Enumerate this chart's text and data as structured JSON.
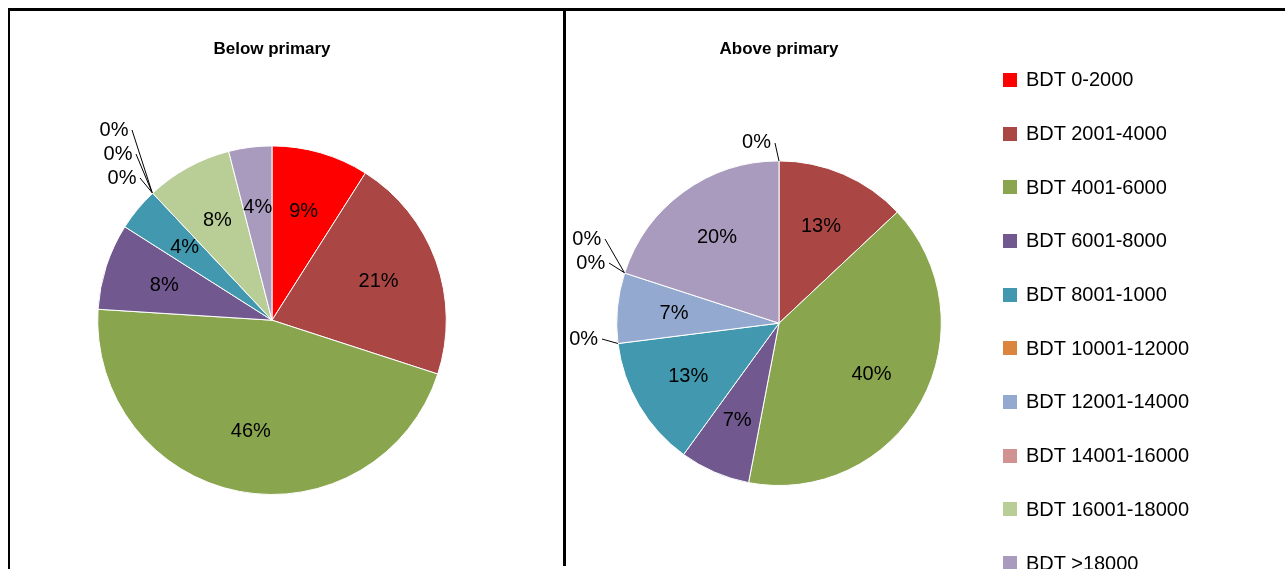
{
  "chart_data": {
    "type": "pie",
    "legend": "right",
    "categories": [
      "BDT 0-2000",
      "BDT 2001-4000",
      "BDT 4001-6000",
      "BDT 6001-8000",
      "BDT 8001-1000",
      "BDT 10001-12000",
      "BDT 12001-14000",
      "BDT 14001-16000",
      "BDT 16001-18000",
      "BDT >18000"
    ],
    "colors": [
      "#ff0000",
      "#aa4643",
      "#89a54e",
      "#71588f",
      "#4198af",
      "#db843d",
      "#93a9cf",
      "#d19392",
      "#b9cd96",
      "#a99bbd"
    ],
    "series": [
      {
        "name": "Below primary",
        "values": [
          9,
          21,
          46,
          8,
          4,
          0,
          0,
          0,
          8,
          4
        ],
        "value_labels": [
          "9%",
          "21%",
          "46%",
          "8%",
          "4%",
          "0%",
          "0%",
          "0%",
          "8%",
          "4%"
        ]
      },
      {
        "name": "Above primary",
        "values": [
          0,
          13,
          40,
          7,
          13,
          0,
          7,
          0,
          0,
          20
        ],
        "value_labels": [
          "0%",
          "13%",
          "40%",
          "7%",
          "13%",
          "0%",
          "7%",
          "0%",
          "0%",
          "20%"
        ]
      }
    ]
  }
}
